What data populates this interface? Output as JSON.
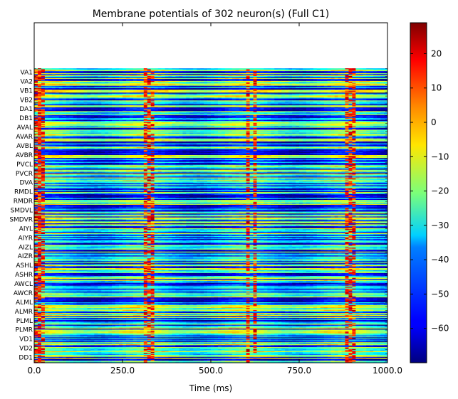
{
  "chart_data": {
    "type": "heatmap",
    "title": "Membrane potentials of 302 neuron(s) (Full C1)",
    "xlabel": "Time (ms)",
    "ylabel": "",
    "xlim": [
      0,
      1000
    ],
    "x_ticks": [
      "0.0",
      "250.0",
      "500.0",
      "750.0",
      "1000.0"
    ],
    "neuron_count": 302,
    "colorbar": {
      "colormap": "jet",
      "range": [
        -70,
        29
      ],
      "ticks": [
        "20",
        "10",
        "0",
        "−10",
        "−20",
        "−30",
        "−40",
        "−50",
        "−60"
      ],
      "tick_values": [
        20,
        10,
        0,
        -10,
        -20,
        -30,
        -40,
        -50,
        -60
      ]
    },
    "row_labels": [
      "VA1",
      "VA2",
      "VB1",
      "VB2",
      "DA1",
      "DB1",
      "AVAL",
      "AVAR",
      "AVBL",
      "AVBR",
      "PVCL",
      "PVCR",
      "DVA",
      "RMDL",
      "RMDR",
      "SMDVL",
      "SMDVR",
      "AIYL",
      "AIYR",
      "AIZL",
      "AIZR",
      "ASHL",
      "ASHR",
      "AWCL",
      "AWCR",
      "ALML",
      "ALMR",
      "PLML",
      "PLMR",
      "VD1",
      "VD2",
      "DD1"
    ],
    "activity_pattern": {
      "burst_times_ms": [
        8,
        20,
        320,
        335,
        605,
        625,
        885,
        900
      ]
    }
  }
}
